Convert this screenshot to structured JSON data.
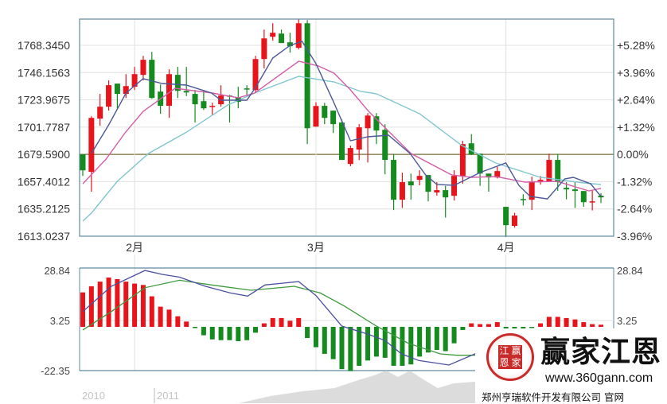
{
  "chart_data": [
    {
      "type": "candlestick",
      "title": "",
      "y_ticks": [
        "1768.3450",
        "1746.1563",
        "1723.9675",
        "1701.7787",
        "1679.5900",
        "1657.4012",
        "1635.2125",
        "1613.0237"
      ],
      "y_right_ticks": [
        "+5.28%",
        "+3.96%",
        "+2.64%",
        "+1.32%",
        "0.00%",
        "-1.32%",
        "-2.64%",
        "-3.96%"
      ],
      "ylim": [
        1613.0237,
        1768.345
      ],
      "reference_price": 1679.59,
      "x_ticks": [
        {
          "label": "2月",
          "index": 6
        },
        {
          "label": "3月",
          "index": 27
        },
        {
          "label": "4月",
          "index": 49
        }
      ],
      "grid": true,
      "colors": {
        "up": "#e8141b",
        "down": "#158a1e",
        "ma5": "#4b5896",
        "ma10": "#d35ea8",
        "ma20": "#80c6cf",
        "reference": "#7d6f3a"
      },
      "ohlc": [
        [
          1679.6,
          1679.6,
          1662.1,
          1666.6
        ],
        [
          1665.4,
          1710.6,
          1649.2,
          1709.3
        ],
        [
          1708.7,
          1728.8,
          1702.9,
          1718.4
        ],
        [
          1718.4,
          1739.8,
          1715.2,
          1735.9
        ],
        [
          1737.2,
          1737.2,
          1717.1,
          1728.8
        ],
        [
          1728.8,
          1744.9,
          1725.5,
          1735.2
        ],
        [
          1734.6,
          1750.8,
          1732.0,
          1744.9
        ],
        [
          1744.3,
          1759.8,
          1739.8,
          1756.6
        ],
        [
          1756.6,
          1763.0,
          1724.9,
          1725.5
        ],
        [
          1730.7,
          1736.5,
          1712.6,
          1719.1
        ],
        [
          1719.1,
          1748.8,
          1709.3,
          1744.9
        ],
        [
          1744.3,
          1750.8,
          1725.5,
          1731.3
        ],
        [
          1731.3,
          1750.8,
          1727.0,
          1730.0
        ],
        [
          1728.8,
          1732.0,
          1705.5,
          1720.4
        ],
        [
          1722.9,
          1732.0,
          1715.8,
          1717.1
        ],
        [
          1718.4,
          1721.6,
          1711.9,
          1719.1
        ],
        [
          1720.4,
          1735.9,
          1718.4,
          1727.5
        ],
        [
          1727.5,
          1728.1,
          1705.5,
          1726.8
        ],
        [
          1726.2,
          1734.6,
          1717.1,
          1722.3
        ],
        [
          1733.3,
          1735.9,
          1727.5,
          1732.7
        ],
        [
          1732.0,
          1759.8,
          1729.4,
          1757.2
        ],
        [
          1757.2,
          1781.2,
          1749.5,
          1774.0
        ],
        [
          1775.3,
          1786.3,
          1772.1,
          1778.6
        ],
        [
          1777.9,
          1781.2,
          1770.2,
          1770.2
        ],
        [
          1770.8,
          1778.6,
          1762.4,
          1767.6
        ],
        [
          1766.3,
          1789.5,
          1765.0,
          1786.3
        ],
        [
          1786.3,
          1788.9,
          1688.0,
          1700.9
        ],
        [
          1702.2,
          1722.0,
          1702.2,
          1719.0
        ],
        [
          1719.1,
          1721.6,
          1704.2,
          1709.3
        ],
        [
          1715.2,
          1715.2,
          1697.0,
          1704.2
        ],
        [
          1705.5,
          1708.0,
          1675.1,
          1675.1
        ],
        [
          1671.8,
          1686.7,
          1670.0,
          1684.8
        ],
        [
          1683.5,
          1704.2,
          1675.0,
          1701.6
        ],
        [
          1700.9,
          1713.2,
          1673.0,
          1711.2
        ],
        [
          1710.6,
          1713.2,
          1688.0,
          1699.0
        ],
        [
          1699.6,
          1704.2,
          1663.4,
          1675.1
        ],
        [
          1675.1,
          1680.0,
          1634.3,
          1642.7
        ],
        [
          1642.7,
          1664.7,
          1636.0,
          1657.0
        ],
        [
          1657.6,
          1664.0,
          1642.7,
          1654.4
        ],
        [
          1658.9,
          1666.7,
          1654.4,
          1662.1
        ],
        [
          1662.8,
          1662.8,
          1641.4,
          1649.2
        ],
        [
          1648.6,
          1657.0,
          1646.0,
          1650.5
        ],
        [
          1650.5,
          1654.0,
          1628.2,
          1644.6
        ],
        [
          1645.9,
          1666.7,
          1642.0,
          1662.1
        ],
        [
          1662.1,
          1690.6,
          1655.7,
          1688.0
        ],
        [
          1688.6,
          1696.1,
          1679.0,
          1679.6
        ],
        [
          1680.2,
          1680.2,
          1654.0,
          1664.0
        ],
        [
          1664.0,
          1664.0,
          1649.2,
          1660.8
        ],
        [
          1660.8,
          1669.4,
          1660.0,
          1666.0
        ],
        [
          1636.9,
          1636.9,
          1612.3,
          1622.0
        ],
        [
          1621.4,
          1632.0,
          1620.0,
          1629.8
        ],
        [
          1643.3,
          1647.2,
          1638.0,
          1642.7
        ],
        [
          1642.7,
          1661.5,
          1634.3,
          1657.6
        ],
        [
          1657.0,
          1662.0,
          1655.0,
          1658.9
        ],
        [
          1657.6,
          1680.2,
          1657.0,
          1675.1
        ],
        [
          1675.1,
          1679.6,
          1650.0,
          1657.0
        ],
        [
          1652.4,
          1657.0,
          1643.0,
          1651.1
        ],
        [
          1651.1,
          1657.0,
          1636.0,
          1649.8
        ],
        [
          1649.8,
          1649.8,
          1637.0,
          1640.7
        ],
        [
          1640.7,
          1650.0,
          1634.0,
          1641.4
        ],
        [
          1646.0,
          1648.0,
          1640.0,
          1644.6
        ]
      ],
      "ma_lines": {
        "ma5": [
          [
            1,
            1680.3
          ],
          [
            3,
            1703.6
          ],
          [
            5,
            1729.5
          ],
          [
            7,
            1741.2
          ],
          [
            9.2,
            1737.3
          ],
          [
            12,
            1736
          ],
          [
            14.9,
            1729.5
          ],
          [
            16,
            1723.7
          ],
          [
            19,
            1723.7
          ],
          [
            20,
            1734
          ],
          [
            22,
            1758
          ],
          [
            24,
            1768.3
          ],
          [
            25.4,
            1771.6
          ],
          [
            27,
            1753.5
          ],
          [
            29,
            1723
          ],
          [
            31,
            1690.7
          ],
          [
            33,
            1693.9
          ],
          [
            35.4,
            1695.2
          ],
          [
            37.9,
            1680.3
          ],
          [
            39.7,
            1662.9
          ],
          [
            41,
            1655.1
          ],
          [
            43,
            1654.4
          ],
          [
            46,
            1664.8
          ],
          [
            49,
            1672.6
          ],
          [
            50.5,
            1654.4
          ],
          [
            51.8,
            1645.4
          ],
          [
            53.8,
            1643.4
          ],
          [
            55.8,
            1659.6
          ],
          [
            56.8,
            1660.9
          ],
          [
            58.8,
            1655.7
          ],
          [
            60,
            1645.4
          ]
        ],
        "ma10": [
          [
            0,
            1655.7
          ],
          [
            2.7,
            1675.8
          ],
          [
            4.9,
            1697.2
          ],
          [
            7,
            1714.6
          ],
          [
            10.7,
            1733.4
          ],
          [
            15,
            1729.5
          ],
          [
            18,
            1725.6
          ],
          [
            19.9,
            1729.5
          ],
          [
            25,
            1755.4
          ],
          [
            27.3,
            1751.5
          ],
          [
            29.1,
            1745.7
          ],
          [
            31,
            1732.1
          ],
          [
            33.1,
            1714.6
          ],
          [
            38,
            1680.3
          ],
          [
            42.7,
            1662.9
          ],
          [
            45,
            1660.9
          ],
          [
            47.8,
            1661.6
          ],
          [
            51.2,
            1657
          ],
          [
            54.9,
            1657.7
          ],
          [
            58.6,
            1649.9
          ],
          [
            60,
            1651.9
          ]
        ],
        "ma20": [
          [
            0,
            1625.3
          ],
          [
            1,
            1631.8
          ],
          [
            4,
            1657.7
          ],
          [
            7.6,
            1680.3
          ],
          [
            11.9,
            1697.2
          ],
          [
            16.8,
            1719.8
          ],
          [
            19.9,
            1729.5
          ],
          [
            25,
            1743.1
          ],
          [
            29.1,
            1738.6
          ],
          [
            32.2,
            1730.8
          ],
          [
            34,
            1728.9
          ],
          [
            39,
            1712.7
          ],
          [
            43.9,
            1686.8
          ],
          [
            47.8,
            1672.6
          ],
          [
            53,
            1660.9
          ],
          [
            58,
            1656.4
          ],
          [
            60,
            1655.1
          ]
        ]
      }
    },
    {
      "type": "macd",
      "y_ticks": [
        "28.84",
        "3.25",
        "-22.35"
      ],
      "ylim": [
        -22.35,
        28.84
      ],
      "colors": {
        "positive": "#e8141b",
        "negative": "#158a1e",
        "dif": "#4b4fa0",
        "dea": "#3c9a3c"
      },
      "histogram": [
        17.6,
        20.7,
        23.1,
        25.2,
        24.4,
        23.1,
        22.1,
        21.4,
        15.6,
        10.3,
        8.8,
        5.4,
        2.7,
        -0.5,
        -4.3,
        -6.4,
        -6.8,
        -6.8,
        -7.3,
        -6.8,
        -3.0,
        1.8,
        4.5,
        4.5,
        3.1,
        4.5,
        -5.7,
        -10.4,
        -13.8,
        -16.5,
        -21.6,
        -22.6,
        -19.9,
        -17.2,
        -15.2,
        -15.8,
        -19.9,
        -19.9,
        -19.2,
        -15.2,
        -13.1,
        -11.8,
        -12.4,
        -8.4,
        -1.6,
        1.8,
        1.4,
        1.4,
        2.4,
        -2.3,
        -2.3,
        -2.3,
        -0.3,
        1.8,
        5.1,
        5.1,
        4.5,
        3.8,
        2.4,
        1.4,
        1.1
      ],
      "dif": [
        [
          0,
          7.8
        ],
        [
          3.3,
          20.7
        ],
        [
          7.2,
          28.8
        ],
        [
          9.2,
          26.8
        ],
        [
          11.2,
          25.4
        ],
        [
          14.2,
          20.7
        ],
        [
          17.1,
          17.3
        ],
        [
          19.1,
          15.7
        ],
        [
          21.1,
          21.4
        ],
        [
          23.1,
          22.3
        ],
        [
          25,
          23.1
        ],
        [
          27,
          16
        ],
        [
          30,
          0.4
        ],
        [
          33,
          -3.7
        ],
        [
          35,
          -7
        ],
        [
          36.9,
          -13.8
        ],
        [
          38.9,
          -17.2
        ],
        [
          42.4,
          -19.5
        ],
        [
          45.4,
          -13.8
        ],
        [
          47,
          -12
        ]
      ],
      "dea": [
        [
          0,
          -1.6
        ],
        [
          3.3,
          7.8
        ],
        [
          7.2,
          20
        ],
        [
          11.2,
          23.8
        ],
        [
          14.9,
          21.4
        ],
        [
          19.5,
          18.7
        ],
        [
          24.5,
          20.7
        ],
        [
          27.5,
          17.3
        ],
        [
          30.3,
          10.6
        ],
        [
          34,
          0.4
        ],
        [
          37.7,
          -8.4
        ],
        [
          41.4,
          -13.8
        ],
        [
          43.3,
          -14.5
        ],
        [
          47,
          -14.5
        ]
      ]
    }
  ],
  "navigator": {
    "labels": [
      "2010",
      "2011"
    ]
  },
  "logo": {
    "seal_chars": [
      "江",
      "赢",
      "恩",
      "家"
    ],
    "brand": "赢家江恩",
    "url": "www.360gann.com",
    "company": "郑州亨瑞软件开发有限公司 官网"
  }
}
